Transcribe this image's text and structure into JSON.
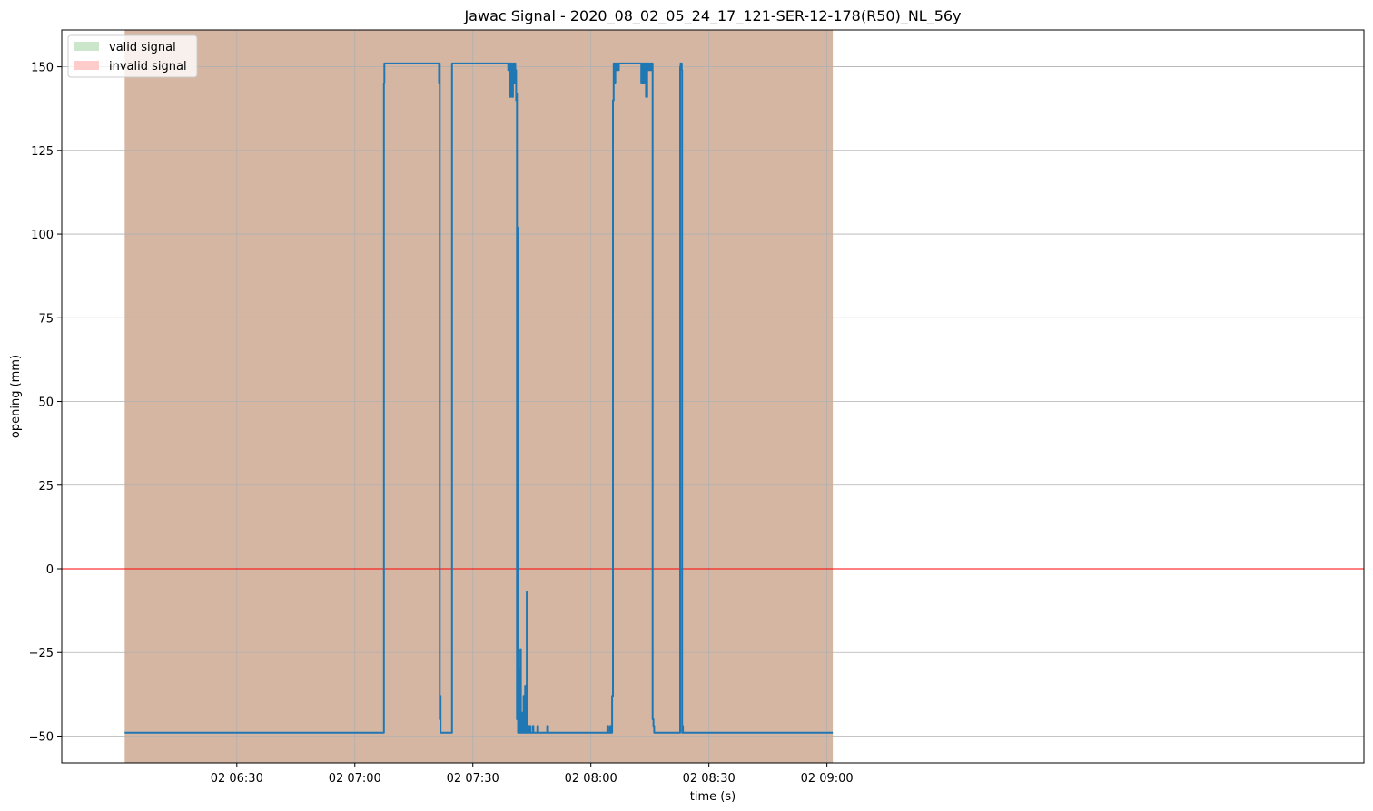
{
  "chart_data": {
    "type": "line",
    "title": "Jawac Signal - 2020_08_02_05_24_17_121-SER-12-178(R50)_NL_56y",
    "xlabel": "time (s)",
    "ylabel": "opening (mm)",
    "x_unit": "minutes since 02 06:00",
    "xlim": [
      -14.5,
      316.5
    ],
    "ylim": [
      -58,
      161
    ],
    "x_ticks": [
      {
        "value": 30,
        "label": "02 06:30"
      },
      {
        "value": 60,
        "label": "02 07:00"
      },
      {
        "value": 90,
        "label": "02 07:30"
      },
      {
        "value": 120,
        "label": "02 08:00"
      },
      {
        "value": 150,
        "label": "02 08:30"
      },
      {
        "value": 180,
        "label": "02 09:00"
      }
    ],
    "y_ticks": [
      -50,
      -25,
      0,
      25,
      50,
      75,
      100,
      125,
      150
    ],
    "grid": true,
    "legend": {
      "position": "top-left",
      "entries": [
        {
          "label": "valid signal",
          "color": "#cce6cc"
        },
        {
          "label": "invalid signal",
          "color": "#ffcccc"
        }
      ]
    },
    "background_band": {
      "x_start": 1.5,
      "x_end": 181.5,
      "color": "#d4b6a3"
    },
    "reference_line": {
      "y": 0,
      "color": "#ff0000"
    },
    "series": [
      {
        "color": "#1f77b4",
        "points": [
          [
            1.5,
            -49
          ],
          [
            67.3,
            -49
          ],
          [
            67.4,
            145
          ],
          [
            67.5,
            151
          ],
          [
            81.3,
            151
          ],
          [
            81.4,
            145
          ],
          [
            81.5,
            151
          ],
          [
            81.6,
            -45
          ],
          [
            81.7,
            -38
          ],
          [
            81.8,
            -49
          ],
          [
            84.6,
            -49
          ],
          [
            84.7,
            151
          ],
          [
            98.8,
            151
          ],
          [
            99.0,
            149
          ],
          [
            99.2,
            151
          ],
          [
            99.4,
            141
          ],
          [
            99.6,
            151
          ],
          [
            99.9,
            149
          ],
          [
            100.0,
            141
          ],
          [
            100.2,
            151
          ],
          [
            100.4,
            145
          ],
          [
            100.6,
            151
          ],
          [
            100.8,
            149
          ],
          [
            101.0,
            140
          ],
          [
            101.1,
            142
          ],
          [
            101.2,
            -45
          ],
          [
            101.3,
            102
          ],
          [
            101.4,
            91
          ],
          [
            101.5,
            -49
          ],
          [
            101.6,
            -30
          ],
          [
            101.7,
            -49
          ],
          [
            101.9,
            -47
          ],
          [
            102.0,
            -42
          ],
          [
            102.1,
            -24
          ],
          [
            102.2,
            -49
          ],
          [
            102.5,
            -43
          ],
          [
            102.7,
            -49
          ],
          [
            102.9,
            -38
          ],
          [
            103.1,
            -49
          ],
          [
            103.3,
            -35
          ],
          [
            103.5,
            -49
          ],
          [
            103.7,
            -7
          ],
          [
            103.8,
            -49
          ],
          [
            104.0,
            -47
          ],
          [
            104.2,
            -49
          ],
          [
            104.4,
            -47
          ],
          [
            104.6,
            -49
          ],
          [
            105.2,
            -47
          ],
          [
            105.4,
            -49
          ],
          [
            106.4,
            -47
          ],
          [
            106.6,
            -49
          ],
          [
            108.9,
            -47
          ],
          [
            109.1,
            -49
          ],
          [
            124.0,
            -49
          ],
          [
            124.2,
            -47
          ],
          [
            124.4,
            -49
          ],
          [
            124.9,
            -47
          ],
          [
            125.1,
            -49
          ],
          [
            125.4,
            -38
          ],
          [
            125.6,
            140
          ],
          [
            125.8,
            151
          ],
          [
            126.0,
            145
          ],
          [
            126.2,
            151
          ],
          [
            126.4,
            149
          ],
          [
            126.6,
            151
          ],
          [
            126.9,
            149
          ],
          [
            127.1,
            151
          ],
          [
            132.5,
            151
          ],
          [
            132.8,
            145
          ],
          [
            133.0,
            151
          ],
          [
            133.3,
            145
          ],
          [
            133.6,
            151
          ],
          [
            134.0,
            141
          ],
          [
            134.3,
            151
          ],
          [
            134.7,
            149
          ],
          [
            135.0,
            151
          ],
          [
            135.3,
            149
          ],
          [
            135.5,
            151
          ],
          [
            135.7,
            -45
          ],
          [
            135.9,
            -47
          ],
          [
            136.1,
            -49
          ],
          [
            142.6,
            -49
          ],
          [
            142.7,
            150
          ],
          [
            142.8,
            151
          ],
          [
            143.1,
            149
          ],
          [
            143.2,
            -49
          ],
          [
            143.3,
            -47
          ],
          [
            143.4,
            -49
          ],
          [
            181.5,
            -49
          ]
        ]
      }
    ]
  }
}
